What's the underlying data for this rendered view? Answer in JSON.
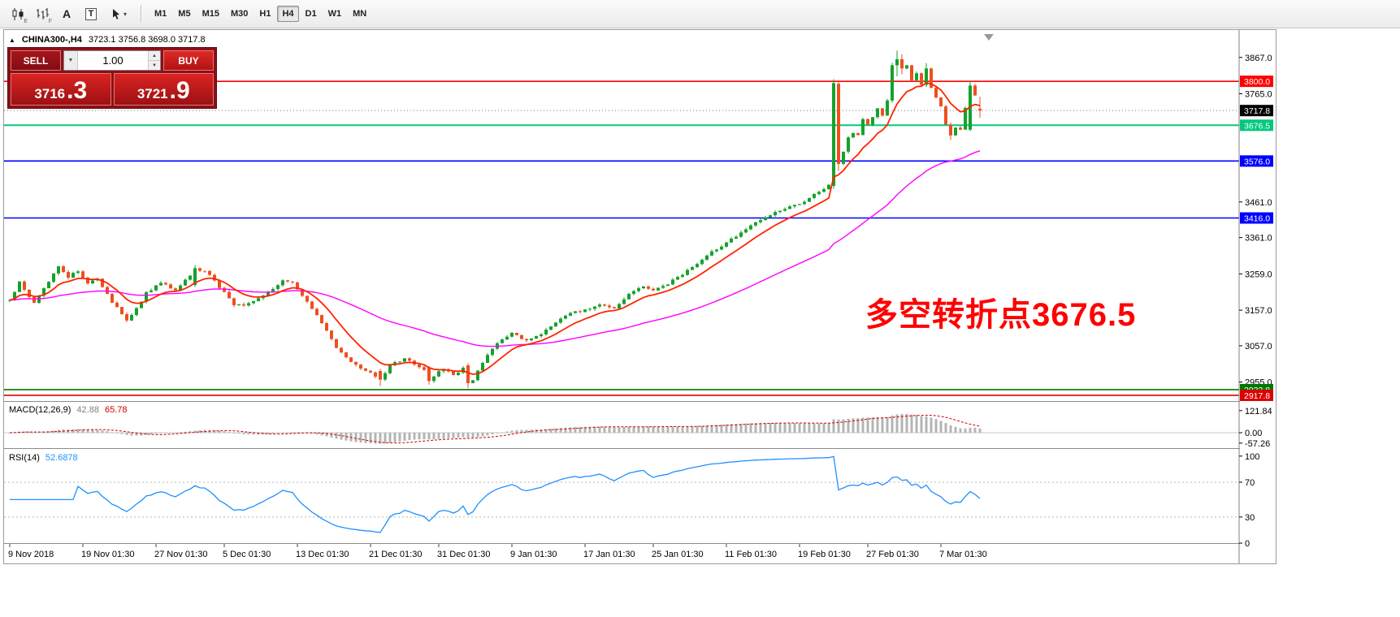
{
  "toolbar": {
    "icons": [
      {
        "name": "candlestick-chart-icon",
        "badge": "E"
      },
      {
        "name": "ohlc-bars-icon",
        "badge": "F"
      },
      {
        "name": "font-tool-icon",
        "glyph": "A"
      },
      {
        "name": "text-tool-icon",
        "glyph": "T"
      },
      {
        "name": "cursor-tool-icon",
        "caret": "▾"
      }
    ],
    "timeframes": [
      {
        "label": "M1",
        "active": false
      },
      {
        "label": "M5",
        "active": false
      },
      {
        "label": "M15",
        "active": false
      },
      {
        "label": "M30",
        "active": false
      },
      {
        "label": "H1",
        "active": false
      },
      {
        "label": "H4",
        "active": true
      },
      {
        "label": "D1",
        "active": false
      },
      {
        "label": "W1",
        "active": false
      },
      {
        "label": "MN",
        "active": false
      }
    ]
  },
  "header": {
    "collapse_arrow": "▲",
    "symbol": "CHINA300-,H4",
    "ohlc": "3723.1 3756.8 3698.0 3717.8"
  },
  "trade_panel": {
    "sell_label": "SELL",
    "buy_label": "BUY",
    "volume": "1.00",
    "drop_arrow": "▼",
    "spin_up": "▲",
    "spin_down": "▼",
    "sell_price_main": "3716",
    "sell_price_frac": ".3",
    "buy_price_main": "3721",
    "buy_price_frac": ".9"
  },
  "annotation": {
    "text": "多空转折点3676.5",
    "color": "#ff0000"
  },
  "macd_panel": {
    "title": "MACD(12,26,9)",
    "value_main": "42.88",
    "value_signal": "65.78",
    "axis_labels": [
      {
        "text": "121.84",
        "value": 121.84
      },
      {
        "text": "0.00",
        "value": 0
      },
      {
        "text": "-57.26",
        "value": -57.26
      }
    ]
  },
  "rsi_panel": {
    "title": "RSI(14)",
    "value": "52.6878",
    "axis_labels": [
      {
        "text": "100",
        "value": 100
      },
      {
        "text": "70",
        "value": 70
      },
      {
        "text": "30",
        "value": 30
      },
      {
        "text": "0",
        "value": 0
      }
    ],
    "level_lines": [
      70,
      30
    ]
  },
  "price_axis": {
    "ticks": [
      3867.0,
      3765.0,
      3461.0,
      3361.0,
      3259.0,
      3157.0,
      3057.0,
      2955.0
    ],
    "line_labels": [
      {
        "price": 3800.0,
        "text": "3800.0",
        "bg": "#ff0000",
        "line": "#ff0000",
        "style": "solid",
        "width": 1.6
      },
      {
        "price": 3717.8,
        "text": "3717.8",
        "bg": "#000000",
        "line": "#777777",
        "style": "dotted",
        "width": 1
      },
      {
        "price": 3676.5,
        "text": "3676.5",
        "bg": "#00c97e",
        "line": "#00cc7a",
        "style": "solid",
        "width": 2
      },
      {
        "price": 3576.0,
        "text": "3576.0",
        "bg": "#0000ff",
        "line": "#0000ff",
        "style": "solid",
        "width": 1.6
      },
      {
        "price": 3416.0,
        "text": "3416.0",
        "bg": "#0000ff",
        "line": "#0000ff",
        "style": "solid",
        "width": 1.6
      },
      {
        "price": 2933.8,
        "text": "2933.8",
        "bg": "#007800",
        "line": "#007800",
        "style": "solid",
        "width": 1.6
      },
      {
        "price": 2917.8,
        "text": "2917.8",
        "bg": "#dd0000",
        "line": "#dd0000",
        "style": "solid",
        "width": 1.6
      }
    ]
  },
  "time_axis": [
    {
      "i": 0,
      "label": "9 Nov 2018"
    },
    {
      "i": 15,
      "label": "19 Nov 01:30"
    },
    {
      "i": 30,
      "label": "27 Nov 01:30"
    },
    {
      "i": 44,
      "label": "5 Dec 01:30"
    },
    {
      "i": 59,
      "label": "13 Dec 01:30"
    },
    {
      "i": 74,
      "label": "21 Dec 01:30"
    },
    {
      "i": 88,
      "label": "31 Dec 01:30"
    },
    {
      "i": 103,
      "label": "9 Jan 01:30"
    },
    {
      "i": 118,
      "label": "17 Jan 01:30"
    },
    {
      "i": 132,
      "label": "25 Jan 01:30"
    },
    {
      "i": 147,
      "label": "11 Feb 01:30"
    },
    {
      "i": 162,
      "label": "19 Feb 01:30"
    },
    {
      "i": 176,
      "label": "27 Feb 01:30"
    },
    {
      "i": 191,
      "label": "7 Mar 01:30"
    }
  ],
  "colors": {
    "candle_up": "#14a22c",
    "candle_down": "#ee4f20",
    "ma_fast": "#ff2400",
    "ma_slow": "#ff00ff",
    "macd_hist": "#b4b4b4",
    "macd_signal": "#d40000",
    "rsi_line": "#1e90ff"
  },
  "chart_data": {
    "type": "candlestick",
    "symbol": "CHINA300-",
    "timeframe": "H4",
    "last_ohlc": {
      "open": 3723.1,
      "high": 3756.8,
      "low": 3698.0,
      "close": 3717.8
    },
    "visible_high": 3886,
    "visible_low": 2938,
    "key_levels": [
      3800.0,
      3676.5,
      3576.0,
      3416.0,
      2933.8,
      2917.8
    ],
    "y_range": {
      "top": 3944,
      "bottom": 2904
    },
    "candle_count": 200,
    "candle_spacing_px": 6,
    "price_keypoints": [
      [
        0,
        3185
      ],
      [
        2,
        3235
      ],
      [
        5,
        3175
      ],
      [
        8,
        3240
      ],
      [
        10,
        3280
      ],
      [
        12,
        3250
      ],
      [
        14,
        3268
      ],
      [
        16,
        3235
      ],
      [
        18,
        3248
      ],
      [
        21,
        3180
      ],
      [
        24,
        3130
      ],
      [
        26,
        3160
      ],
      [
        28,
        3205
      ],
      [
        31,
        3235
      ],
      [
        34,
        3215
      ],
      [
        36,
        3240
      ],
      [
        38,
        3272
      ],
      [
        40,
        3266
      ],
      [
        42,
        3240
      ],
      [
        44,
        3205
      ],
      [
        46,
        3172
      ],
      [
        48,
        3168
      ],
      [
        50,
        3180
      ],
      [
        53,
        3208
      ],
      [
        56,
        3242
      ],
      [
        58,
        3238
      ],
      [
        60,
        3198
      ],
      [
        63,
        3142
      ],
      [
        65,
        3102
      ],
      [
        67,
        3052
      ],
      [
        69,
        3022
      ],
      [
        71,
        3002
      ],
      [
        74,
        2982
      ],
      [
        76,
        2960
      ],
      [
        78,
        3002
      ],
      [
        81,
        3022
      ],
      [
        84,
        2994
      ],
      [
        87,
        2974
      ],
      [
        89,
        2992
      ],
      [
        91,
        2972
      ],
      [
        93,
        2994
      ],
      [
        95,
        2958
      ],
      [
        96,
        2988
      ],
      [
        98,
        3030
      ],
      [
        100,
        3062
      ],
      [
        103,
        3092
      ],
      [
        106,
        3072
      ],
      [
        109,
        3088
      ],
      [
        112,
        3122
      ],
      [
        115,
        3150
      ],
      [
        118,
        3156
      ],
      [
        121,
        3176
      ],
      [
        124,
        3162
      ],
      [
        127,
        3200
      ],
      [
        130,
        3226
      ],
      [
        132,
        3210
      ],
      [
        135,
        3232
      ],
      [
        138,
        3256
      ],
      [
        141,
        3290
      ],
      [
        144,
        3322
      ],
      [
        147,
        3346
      ],
      [
        150,
        3372
      ],
      [
        153,
        3402
      ],
      [
        156,
        3426
      ],
      [
        159,
        3442
      ],
      [
        162,
        3456
      ],
      [
        164,
        3470
      ],
      [
        166,
        3492
      ],
      [
        168,
        3506
      ],
      [
        169,
        3795
      ],
      [
        170,
        3568
      ],
      [
        171,
        3602
      ],
      [
        172,
        3642
      ],
      [
        173,
        3656
      ],
      [
        174,
        3646
      ],
      [
        175,
        3692
      ],
      [
        176,
        3678
      ],
      [
        177,
        3698
      ],
      [
        178,
        3722
      ],
      [
        179,
        3702
      ],
      [
        180,
        3748
      ],
      [
        181,
        3845
      ],
      [
        182,
        3862
      ],
      [
        183,
        3836
      ],
      [
        184,
        3848
      ],
      [
        185,
        3802
      ],
      [
        186,
        3822
      ],
      [
        187,
        3792
      ],
      [
        188,
        3836
      ],
      [
        189,
        3782
      ],
      [
        190,
        3752
      ],
      [
        191,
        3732
      ],
      [
        192,
        3682
      ],
      [
        193,
        3648
      ],
      [
        194,
        3668
      ],
      [
        195,
        3662
      ],
      [
        196,
        3722
      ],
      [
        197,
        3788
      ],
      [
        198,
        3762
      ],
      [
        199,
        3717.8
      ]
    ],
    "candle_overrides": {
      "38": [
        3228,
        3284,
        3222,
        3275
      ],
      "76": [
        2986,
        2992,
        2944,
        2962
      ],
      "86": [
        2996,
        3000,
        2948,
        2958
      ],
      "94": [
        3002,
        3008,
        2938,
        2952
      ],
      "169": [
        3506,
        3806,
        3498,
        3795
      ],
      "170": [
        3793,
        3800,
        3548,
        3568
      ],
      "181": [
        3746,
        3852,
        3740,
        3845
      ],
      "182": [
        3845,
        3886,
        3814,
        3862
      ],
      "183": [
        3862,
        3876,
        3820,
        3836
      ],
      "188": [
        3790,
        3851,
        3784,
        3836
      ],
      "193": [
        3678,
        3684,
        3635,
        3648
      ],
      "197": [
        3664,
        3801,
        3660,
        3788
      ],
      "199": [
        3723.1,
        3756.8,
        3698.0,
        3717.8
      ]
    },
    "moving_averages": [
      {
        "name": "ma-fast",
        "period": 10,
        "color": "#ff2400"
      },
      {
        "name": "ma-slow",
        "period": 55,
        "color": "#ff00ff"
      }
    ],
    "indicators": {
      "macd": {
        "params": [
          12,
          26,
          9
        ],
        "current_main": 42.88,
        "current_signal": 65.78,
        "visible_range": [
          -57.26,
          121.84
        ]
      },
      "rsi": {
        "period": 14,
        "current": 52.6878,
        "levels": [
          30,
          70
        ],
        "range": [
          0,
          100
        ]
      }
    }
  }
}
